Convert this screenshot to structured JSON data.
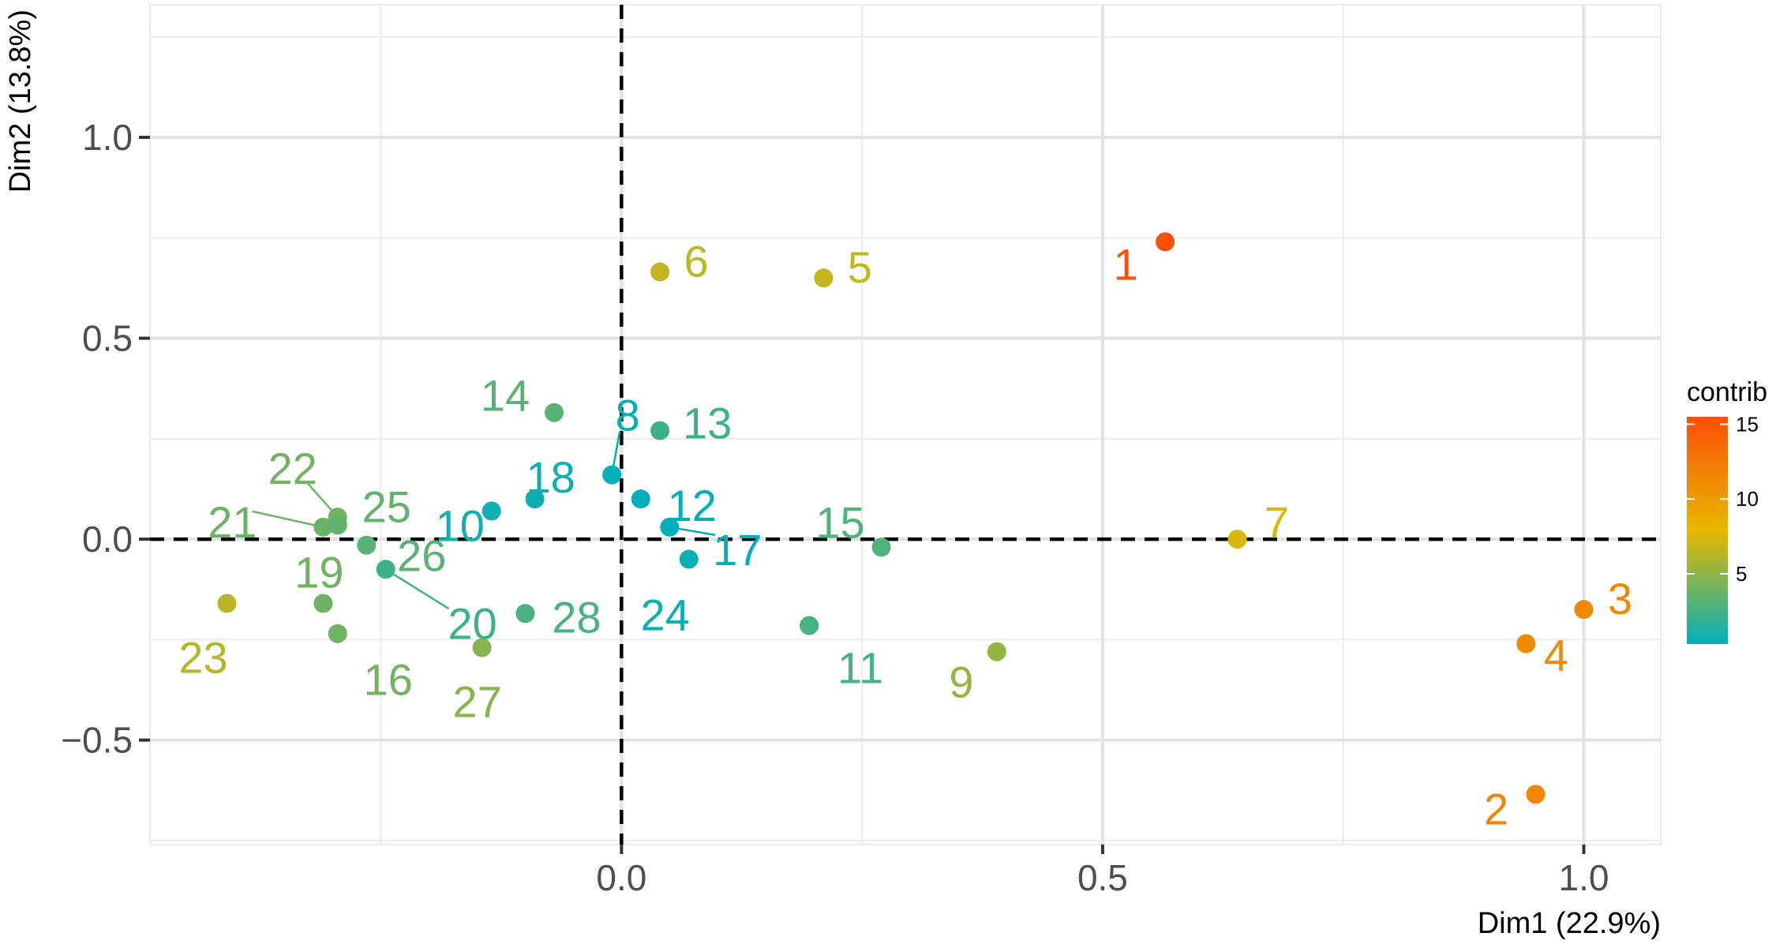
{
  "chart_data": {
    "type": "scatter",
    "title": "",
    "xlabel": "Dim1 (22.9%)",
    "ylabel": "Dim2 (13.8%)",
    "xlim": [
      -0.49,
      1.08
    ],
    "ylim": [
      -0.76,
      1.33
    ],
    "x_ticks": [
      0.0,
      0.5,
      1.0
    ],
    "x_tick_labels": [
      "0.0",
      "0.5",
      "1.0"
    ],
    "y_ticks": [
      -0.5,
      0.0,
      0.5,
      1.0
    ],
    "y_tick_labels": [
      "−0.5",
      "0.0",
      "0.5",
      "1.0"
    ],
    "grid": true,
    "reference_lines": {
      "x": 0,
      "y": 0,
      "style": "dashed"
    },
    "legend": {
      "title": "contrib",
      "position": "right",
      "ticks": [
        5,
        10,
        15
      ],
      "tick_labels": [
        "5",
        "10",
        "15"
      ],
      "range": [
        0.3,
        15.5
      ],
      "gradient": [
        "#00afbb",
        "#e7b800",
        "#fc4e07"
      ]
    },
    "points": [
      {
        "label": "1",
        "x": 0.565,
        "y": 0.74,
        "contrib": 15.3
      },
      {
        "label": "2",
        "x": 0.95,
        "y": -0.635,
        "contrib": 11.5
      },
      {
        "label": "3",
        "x": 1.0,
        "y": -0.175,
        "contrib": 11.4
      },
      {
        "label": "4",
        "x": 0.94,
        "y": -0.26,
        "contrib": 11.2
      },
      {
        "label": "5",
        "x": 0.21,
        "y": 0.65,
        "contrib": 6.7
      },
      {
        "label": "6",
        "x": 0.04,
        "y": 0.665,
        "contrib": 6.6
      },
      {
        "label": "7",
        "x": 0.64,
        "y": 0.0,
        "contrib": 7.4
      },
      {
        "label": "8",
        "x": -0.01,
        "y": 0.16,
        "contrib": 0.4
      },
      {
        "label": "9",
        "x": 0.39,
        "y": -0.28,
        "contrib": 5.2
      },
      {
        "label": "10",
        "x": -0.135,
        "y": 0.07,
        "contrib": 0.8
      },
      {
        "label": "11",
        "x": 0.195,
        "y": -0.215,
        "contrib": 2.6
      },
      {
        "label": "12",
        "x": 0.02,
        "y": 0.1,
        "contrib": 0.3
      },
      {
        "label": "13",
        "x": 0.04,
        "y": 0.27,
        "contrib": 2.3
      },
      {
        "label": "14",
        "x": -0.07,
        "y": 0.315,
        "contrib": 3.2
      },
      {
        "label": "15",
        "x": 0.27,
        "y": -0.02,
        "contrib": 2.9
      },
      {
        "label": "16",
        "x": -0.295,
        "y": -0.235,
        "contrib": 4.0
      },
      {
        "label": "17",
        "x": 0.05,
        "y": 0.03,
        "contrib": 0.3
      },
      {
        "label": "18",
        "x": -0.09,
        "y": 0.1,
        "contrib": 0.7
      },
      {
        "label": "19",
        "x": -0.31,
        "y": -0.16,
        "contrib": 3.9
      },
      {
        "label": "20",
        "x": -0.245,
        "y": -0.075,
        "contrib": 2.3
      },
      {
        "label": "21",
        "x": -0.31,
        "y": 0.03,
        "contrib": 3.7
      },
      {
        "label": "22",
        "x": -0.295,
        "y": 0.055,
        "contrib": 4.0
      },
      {
        "label": "23",
        "x": -0.41,
        "y": -0.16,
        "contrib": 6.3
      },
      {
        "label": "24",
        "x": 0.07,
        "y": -0.05,
        "contrib": 0.6
      },
      {
        "label": "25",
        "x": -0.295,
        "y": 0.035,
        "contrib": 3.5
      },
      {
        "label": "26",
        "x": -0.265,
        "y": -0.015,
        "contrib": 3.2
      },
      {
        "label": "27",
        "x": -0.145,
        "y": -0.27,
        "contrib": 4.7
      },
      {
        "label": "28",
        "x": -0.1,
        "y": -0.185,
        "contrib": 2.7
      }
    ]
  }
}
